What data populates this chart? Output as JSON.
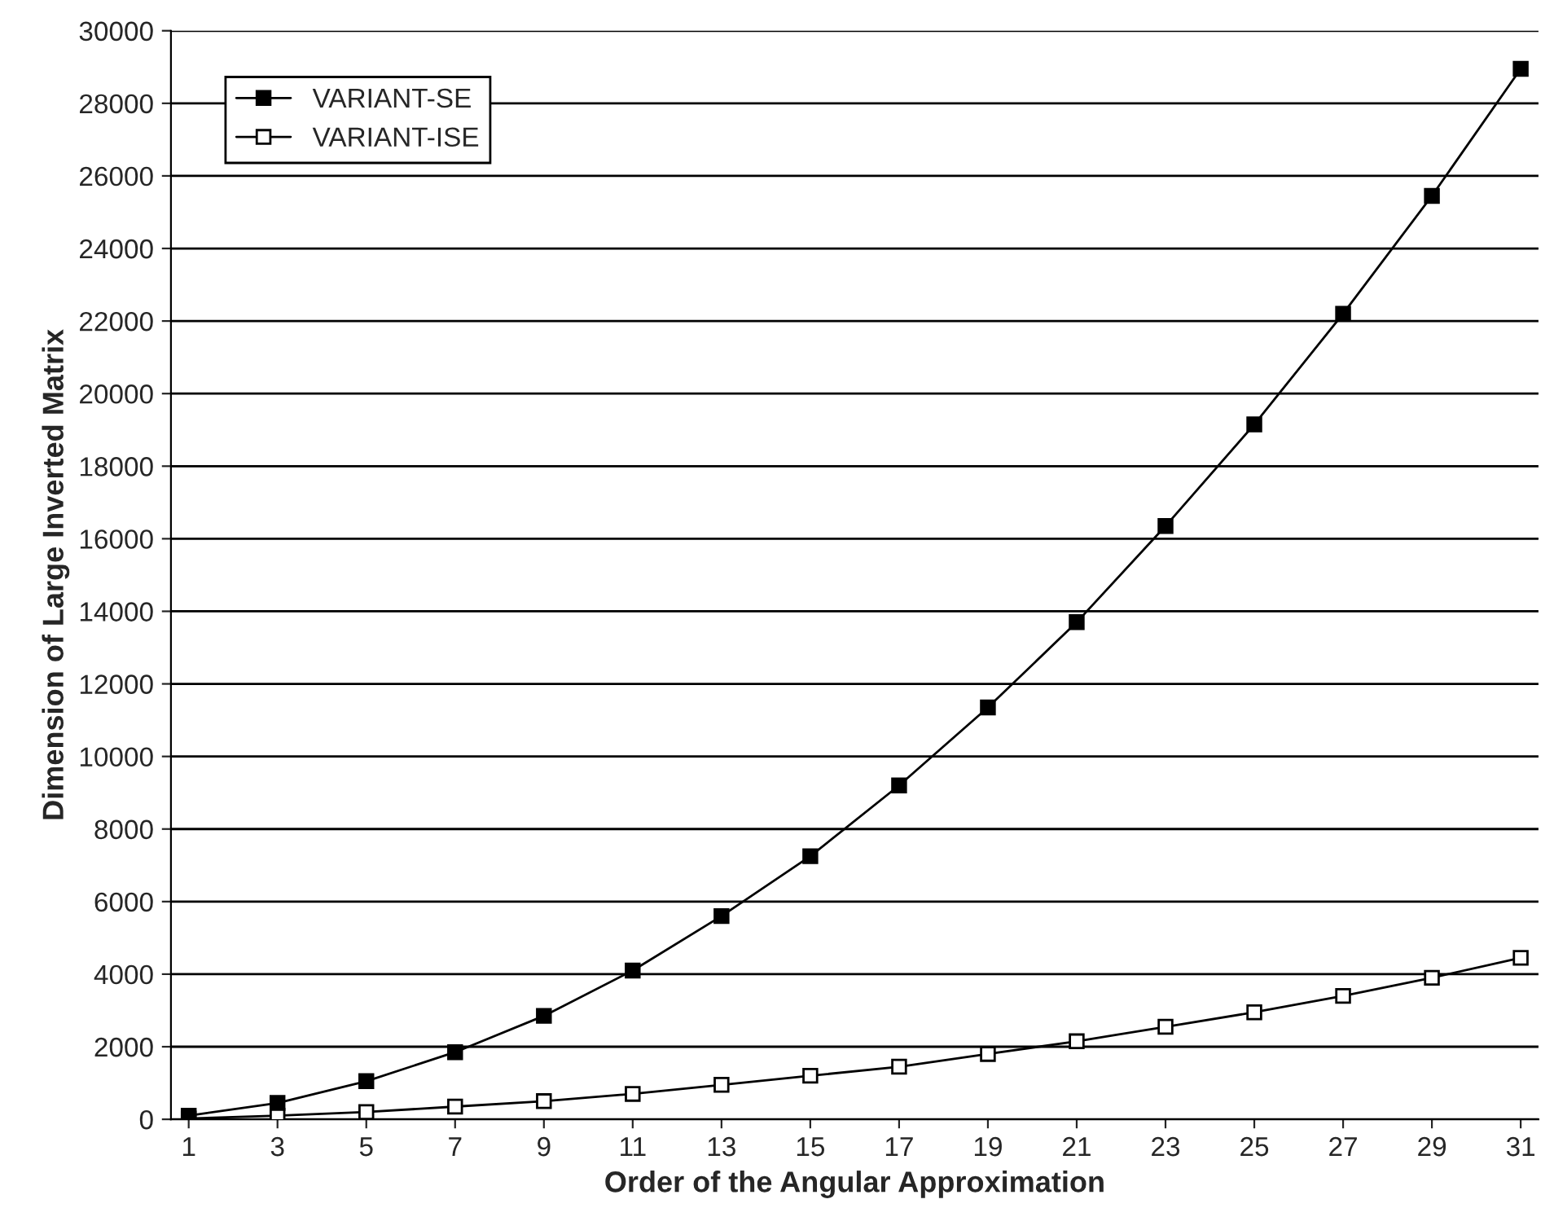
{
  "chart_data": {
    "type": "line",
    "xlabel": "Order of the Angular Approximation",
    "ylabel": "Dimension of Large Inverted Matrix",
    "categories": [
      "1",
      "3",
      "5",
      "7",
      "9",
      "11",
      "13",
      "15",
      "17",
      "19",
      "21",
      "23",
      "25",
      "27",
      "29",
      "31"
    ],
    "series": [
      {
        "name": "VARIANT-SE",
        "color": "#000000",
        "values": [
          100,
          450,
          1050,
          1850,
          2850,
          4100,
          5600,
          7250,
          9200,
          11350,
          13700,
          16350,
          19150,
          22200,
          25450,
          28950
        ]
      },
      {
        "name": "VARIANT-ISE",
        "color": "#000000",
        "values": [
          20,
          100,
          200,
          350,
          500,
          700,
          950,
          1200,
          1450,
          1800,
          2150,
          2550,
          2950,
          3400,
          3900,
          4450
        ]
      }
    ],
    "ylim": [
      0,
      30000
    ],
    "yticks": [
      0,
      2000,
      4000,
      6000,
      8000,
      10000,
      12000,
      14000,
      16000,
      18000,
      20000,
      22000,
      24000,
      26000,
      28000,
      30000
    ],
    "grid": "y",
    "legend": "top left",
    "marker": "square",
    "line_style": "solid"
  }
}
